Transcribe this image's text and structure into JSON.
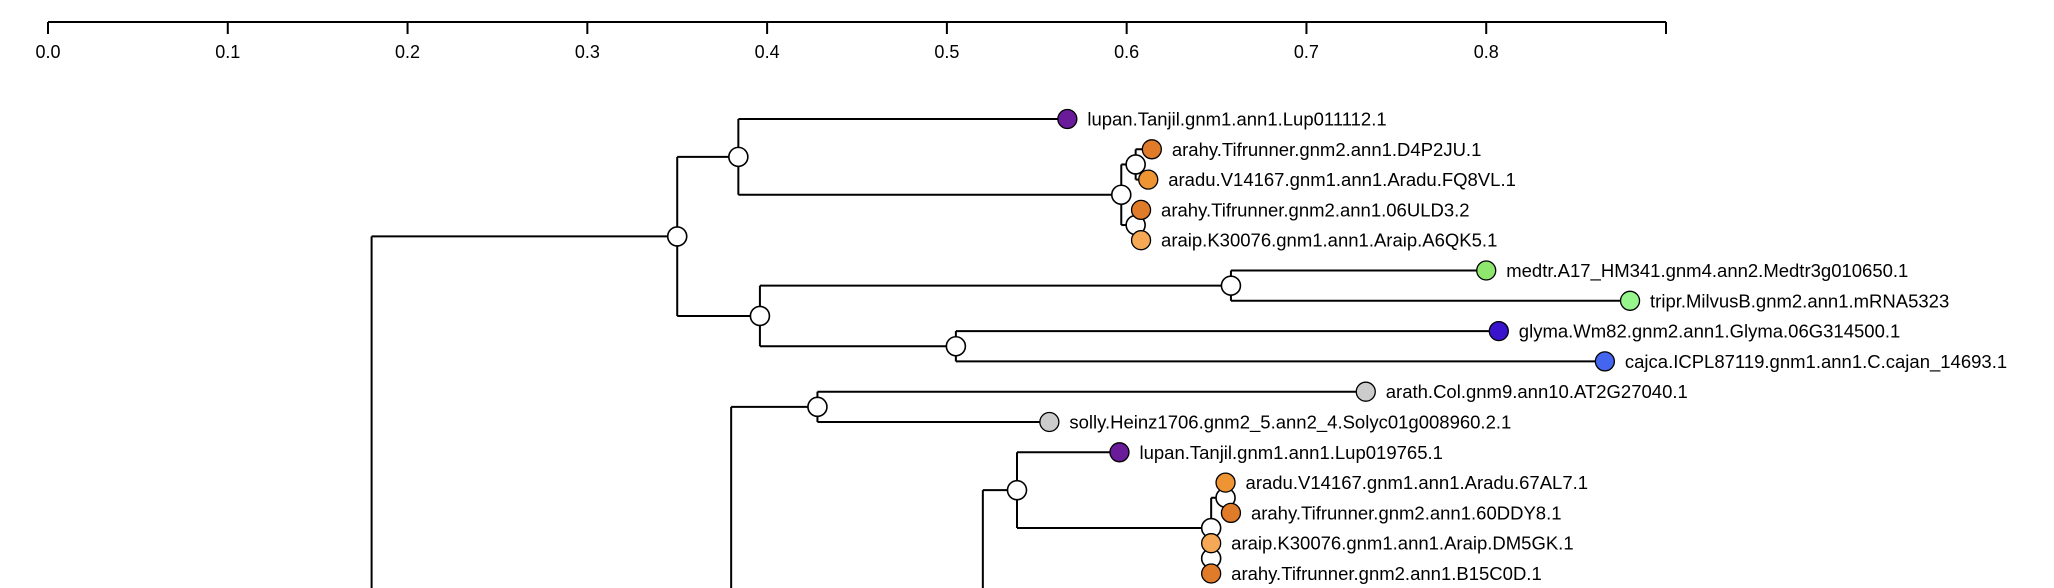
{
  "axis": {
    "min": 0,
    "max": 0.9,
    "ticks": [
      0.0,
      0.1,
      0.2,
      0.3,
      0.4,
      0.5,
      0.6,
      0.7,
      0.8
    ],
    "tick_labels": [
      "0.0",
      "0.1",
      "0.2",
      "0.3",
      "0.4",
      "0.5",
      "0.6",
      "0.7",
      "0.8"
    ]
  },
  "colors": {
    "lupan": "#6a1b9a",
    "arahy": "#e07b2a",
    "aradu": "#ee9433",
    "araip": "#f5a855",
    "medtr": "#8ee66e",
    "tripr": "#96f58c",
    "glyma": "#3a14cc",
    "cajca": "#4466ee",
    "arath": "#cccccc",
    "solly": "#cccccc"
  },
  "leaves": [
    {
      "id": "L1",
      "label": "lupan.Tanjil.gnm1.ann1.Lup011112.1",
      "species": "lupan",
      "dist": 0.567
    },
    {
      "id": "L2",
      "label": "arahy.Tifrunner.gnm2.ann1.D4P2JU.1",
      "species": "arahy",
      "dist": 0.614
    },
    {
      "id": "L3",
      "label": "aradu.V14167.gnm1.ann1.Aradu.FQ8VL.1",
      "species": "aradu",
      "dist": 0.612
    },
    {
      "id": "L4",
      "label": "arahy.Tifrunner.gnm2.ann1.06ULD3.2",
      "species": "arahy",
      "dist": 0.608
    },
    {
      "id": "L5",
      "label": "araip.K30076.gnm1.ann1.Araip.A6QK5.1",
      "species": "araip",
      "dist": 0.608
    },
    {
      "id": "L6",
      "label": "medtr.A17_HM341.gnm4.ann2.Medtr3g010650.1",
      "species": "medtr",
      "dist": 0.8
    },
    {
      "id": "L7",
      "label": "tripr.MilvusB.gnm2.ann1.mRNA5323",
      "species": "tripr",
      "dist": 0.88
    },
    {
      "id": "L8",
      "label": "glyma.Wm82.gnm2.ann1.Glyma.06G314500.1",
      "species": "glyma",
      "dist": 0.807
    },
    {
      "id": "L9",
      "label": "cajca.ICPL87119.gnm1.ann1.C.cajan_14693.1",
      "species": "cajca",
      "dist": 0.866
    },
    {
      "id": "L10",
      "label": "arath.Col.gnm9.ann10.AT2G27040.1",
      "species": "arath",
      "dist": 0.733
    },
    {
      "id": "L11",
      "label": "solly.Heinz1706.gnm2_5.ann2_4.Solyc01g008960.2.1",
      "species": "solly",
      "dist": 0.557
    },
    {
      "id": "L12",
      "label": "lupan.Tanjil.gnm1.ann1.Lup019765.1",
      "species": "lupan",
      "dist": 0.596
    },
    {
      "id": "L13",
      "label": "aradu.V14167.gnm1.ann1.Aradu.67AL7.1",
      "species": "aradu",
      "dist": 0.655
    },
    {
      "id": "L14",
      "label": "arahy.Tifrunner.gnm2.ann1.60DDY8.1",
      "species": "arahy",
      "dist": 0.658
    },
    {
      "id": "L15",
      "label": "araip.K30076.gnm1.ann1.Araip.DM5GK.1",
      "species": "araip",
      "dist": 0.647
    },
    {
      "id": "L16",
      "label": "arahy.Tifrunner.gnm2.ann1.B15C0D.1",
      "species": "arahy",
      "dist": 0.647
    }
  ],
  "inner_nodes": [
    {
      "id": "n_top",
      "dist": 0.35,
      "children": [
        "n_a",
        "n_b"
      ]
    },
    {
      "id": "n_a",
      "dist": 0.384,
      "children": [
        "L1",
        "n_ah"
      ]
    },
    {
      "id": "n_ah",
      "dist": 0.597,
      "children": [
        "n_ah1",
        "n_ah2"
      ]
    },
    {
      "id": "n_ah1",
      "dist": 0.605,
      "children": [
        "L2",
        "L3"
      ]
    },
    {
      "id": "n_ah2",
      "dist": 0.605,
      "children": [
        "L4",
        "L5"
      ]
    },
    {
      "id": "n_b",
      "dist": 0.396,
      "children": [
        "n_mt",
        "n_gc"
      ]
    },
    {
      "id": "n_mt",
      "dist": 0.658,
      "children": [
        "L6",
        "L7"
      ]
    },
    {
      "id": "n_gc",
      "dist": 0.505,
      "children": [
        "L8",
        "L9"
      ]
    },
    {
      "id": "n_as",
      "dist": 0.428,
      "children": [
        "L10",
        "L11"
      ]
    },
    {
      "id": "n_lu2",
      "dist": 0.539,
      "children": [
        "L12",
        "n_ah3"
      ]
    },
    {
      "id": "n_ah3",
      "dist": 0.647,
      "children": [
        "n_ah4",
        "n_ah5"
      ]
    },
    {
      "id": "n_ah4",
      "dist": 0.655,
      "children": [
        "L13",
        "L14"
      ]
    },
    {
      "id": "n_ah5",
      "dist": 0.647,
      "children": [
        "L15",
        "L16"
      ]
    }
  ],
  "offscreen_stems": [
    {
      "id": "n_top",
      "dist": 0.18
    },
    {
      "id": "n_as",
      "dist": 0.38
    },
    {
      "id": "n_lu2",
      "dist": 0.52
    }
  ]
}
